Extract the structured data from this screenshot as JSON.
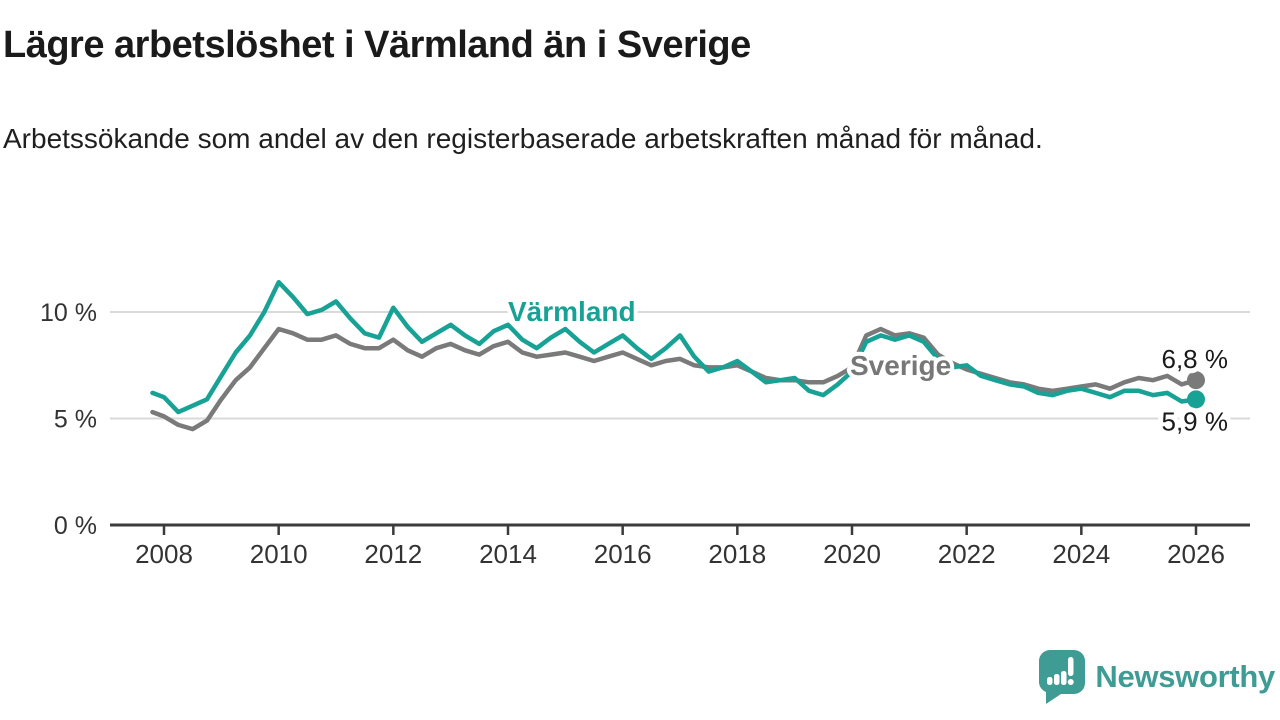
{
  "header": {
    "title": "Lägre arbetslöshet i Värmland än i Sverige",
    "subtitle": "Arbetssökande som andel av den registerbaserade arbetskraften månad för månad."
  },
  "chart_data": {
    "type": "line",
    "title": "Lägre arbetslöshet i Värmland än i Sverige",
    "xlabel": "",
    "ylabel": "",
    "unit": "%",
    "grid": "horizontal",
    "xlim": [
      2007.7,
      2027
    ],
    "ylim": [
      0,
      12
    ],
    "x_ticks": [
      {
        "value": 2008,
        "label": "2008"
      },
      {
        "value": 2010,
        "label": "2010"
      },
      {
        "value": 2012,
        "label": "2012"
      },
      {
        "value": 2014,
        "label": "2014"
      },
      {
        "value": 2016,
        "label": "2016"
      },
      {
        "value": 2018,
        "label": "2018"
      },
      {
        "value": 2020,
        "label": "2020"
      },
      {
        "value": 2022,
        "label": "2022"
      },
      {
        "value": 2024,
        "label": "2024"
      },
      {
        "value": 2026,
        "label": "2026"
      }
    ],
    "y_ticks": [
      {
        "value": 0,
        "label": "0 %"
      },
      {
        "value": 5,
        "label": "5 %"
      },
      {
        "value": 10,
        "label": "10 %"
      }
    ],
    "x": [
      2007.8,
      2008,
      2008.25,
      2008.5,
      2008.75,
      2009,
      2009.25,
      2009.5,
      2009.75,
      2010,
      2010.25,
      2010.5,
      2010.75,
      2011,
      2011.25,
      2011.5,
      2011.75,
      2012,
      2012.25,
      2012.5,
      2012.75,
      2013,
      2013.25,
      2013.5,
      2013.75,
      2014,
      2014.25,
      2014.5,
      2014.75,
      2015,
      2015.25,
      2015.5,
      2015.75,
      2016,
      2016.25,
      2016.5,
      2016.75,
      2017,
      2017.25,
      2017.5,
      2017.75,
      2018,
      2018.25,
      2018.5,
      2018.75,
      2019,
      2019.25,
      2019.5,
      2019.75,
      2020,
      2020.25,
      2020.5,
      2020.75,
      2021,
      2021.25,
      2021.5,
      2021.75,
      2022,
      2022.25,
      2022.5,
      2022.75,
      2023,
      2023.25,
      2023.5,
      2023.75,
      2024,
      2024.25,
      2024.5,
      2024.75,
      2025,
      2025.25,
      2025.5,
      2025.75,
      2026
    ],
    "series": [
      {
        "name": "Värmland",
        "color": "#18A295",
        "end_label": "5,9 %",
        "end_value": 5.9,
        "values": [
          6.2,
          6.0,
          5.3,
          5.6,
          5.9,
          7.0,
          8.1,
          8.9,
          10.0,
          11.4,
          10.7,
          9.9,
          10.1,
          10.5,
          9.7,
          9.0,
          8.8,
          10.2,
          9.3,
          8.6,
          9.0,
          9.4,
          8.9,
          8.5,
          9.1,
          9.4,
          8.7,
          8.3,
          8.8,
          9.2,
          8.6,
          8.1,
          8.5,
          8.9,
          8.3,
          7.8,
          8.3,
          8.9,
          7.9,
          7.2,
          7.4,
          7.7,
          7.2,
          6.7,
          6.8,
          6.9,
          6.3,
          6.1,
          6.6,
          7.2,
          8.6,
          8.9,
          8.7,
          8.9,
          8.6,
          7.8,
          7.4,
          7.5,
          7.0,
          6.8,
          6.6,
          6.5,
          6.2,
          6.1,
          6.3,
          6.4,
          6.2,
          6.0,
          6.3,
          6.3,
          6.1,
          6.2,
          5.8,
          5.9
        ]
      },
      {
        "name": "Sverige",
        "color": "#7a7a7a",
        "end_label": "6,8 %",
        "end_value": 6.8,
        "values": [
          5.3,
          5.1,
          4.7,
          4.5,
          4.9,
          5.9,
          6.8,
          7.4,
          8.3,
          9.2,
          9.0,
          8.7,
          8.7,
          8.9,
          8.5,
          8.3,
          8.3,
          8.7,
          8.2,
          7.9,
          8.3,
          8.5,
          8.2,
          8.0,
          8.4,
          8.6,
          8.1,
          7.9,
          8.0,
          8.1,
          7.9,
          7.7,
          7.9,
          8.1,
          7.8,
          7.5,
          7.7,
          7.8,
          7.5,
          7.4,
          7.4,
          7.5,
          7.2,
          6.9,
          6.8,
          6.8,
          6.7,
          6.7,
          7.0,
          7.4,
          8.9,
          9.2,
          8.9,
          9.0,
          8.8,
          8.0,
          7.6,
          7.3,
          7.1,
          6.9,
          6.7,
          6.6,
          6.4,
          6.3,
          6.4,
          6.5,
          6.6,
          6.4,
          6.7,
          6.9,
          6.8,
          7.0,
          6.6,
          6.8
        ]
      }
    ]
  },
  "footer": {
    "brand": "Newsworthy",
    "brand_color": "#3E9C94"
  }
}
